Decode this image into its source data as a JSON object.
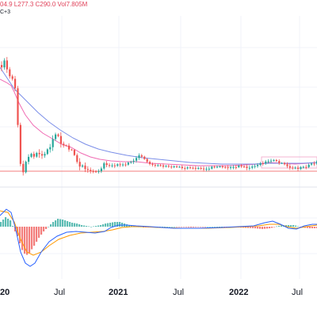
{
  "legend": {
    "ohlc_text": "04.9  L277.3  C290.0  Vol7.805M",
    "currency_suffix": "C+3"
  },
  "colors": {
    "up": "#26a69a",
    "down": "#ef5350",
    "ma_fast": "#f06bb3",
    "ma_slow": "#7b8ee8",
    "macd_line": "#2962ff",
    "signal_line": "#ff9800",
    "hist_up": "#26a69a",
    "hist_down": "#ef5350",
    "price_line": "#ef5350",
    "grid": "#f0f3fa"
  },
  "chart_data": {
    "type": "candlestick",
    "title": "",
    "xlabel": "",
    "ylabel": "",
    "x_ticks": [
      {
        "label": "20",
        "bold": true
      },
      {
        "label": "Jul",
        "bold": false
      },
      {
        "label": "2021",
        "bold": true
      },
      {
        "label": "Jul",
        "bold": false
      },
      {
        "label": "2022",
        "bold": true
      },
      {
        "label": "Jul",
        "bold": false
      }
    ],
    "indicators": [
      "moving_average_fast",
      "moving_average_slow",
      "macd",
      "signal",
      "histogram"
    ]
  }
}
